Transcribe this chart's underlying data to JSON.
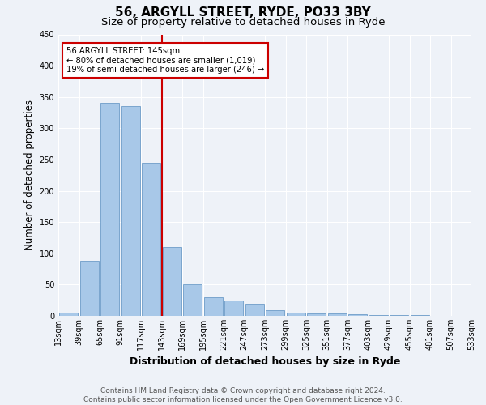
{
  "title_line1": "56, ARGYLL STREET, RYDE, PO33 3BY",
  "title_line2": "Size of property relative to detached houses in Ryde",
  "xlabel": "Distribution of detached houses by size in Ryde",
  "ylabel": "Number of detached properties",
  "bar_values": [
    5,
    88,
    340,
    335,
    245,
    110,
    50,
    30,
    25,
    20,
    9,
    5,
    4,
    4,
    2,
    1,
    1,
    1,
    0,
    0
  ],
  "bin_labels": [
    "13sqm",
    "39sqm",
    "65sqm",
    "91sqm",
    "117sqm",
    "143sqm",
    "169sqm",
    "195sqm",
    "221sqm",
    "247sqm",
    "273sqm",
    "299sqm",
    "325sqm",
    "351sqm",
    "377sqm",
    "403sqm",
    "429sqm",
    "455sqm",
    "481sqm",
    "507sqm",
    "533sqm"
  ],
  "bar_color": "#a8c8e8",
  "bar_edge_color": "#5a8fc0",
  "annotation_text_line1": "56 ARGYLL STREET: 145sqm",
  "annotation_text_line2": "← 80% of detached houses are smaller (1,019)",
  "annotation_text_line3": "19% of semi-detached houses are larger (246) →",
  "annotation_box_color": "#ffffff",
  "annotation_box_edge": "#cc0000",
  "ylim": [
    0,
    450
  ],
  "yticks": [
    0,
    50,
    100,
    150,
    200,
    250,
    300,
    350,
    400,
    450
  ],
  "red_line_color": "#cc0000",
  "footnote_line1": "Contains HM Land Registry data © Crown copyright and database right 2024.",
  "footnote_line2": "Contains public sector information licensed under the Open Government Licence v3.0.",
  "bg_color": "#eef2f8",
  "plot_bg_color": "#eef2f8",
  "grid_color": "#ffffff",
  "title_fontsize": 11,
  "subtitle_fontsize": 9.5,
  "axis_label_fontsize": 8.5,
  "tick_fontsize": 7,
  "footnote_fontsize": 6.5,
  "red_line_bar_index": 5
}
